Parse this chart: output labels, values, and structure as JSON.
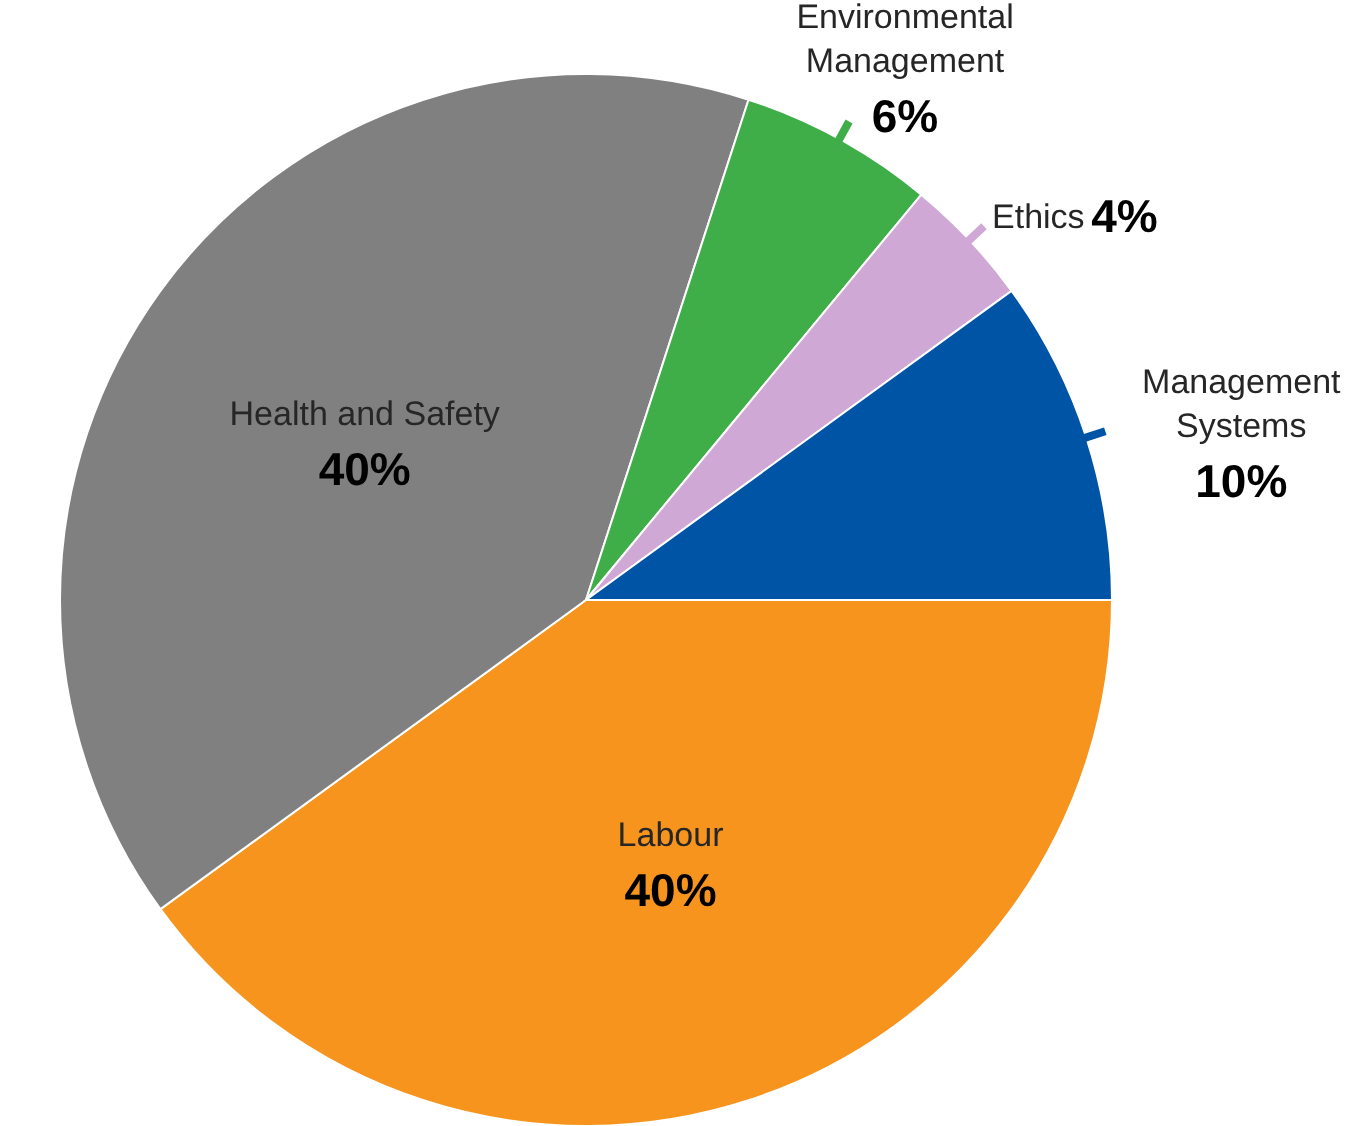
{
  "chart_data": {
    "type": "pie",
    "categories": [
      "Labour",
      "Health and Safety",
      "Environmental Management",
      "Ethics",
      "Management Systems"
    ],
    "values": [
      40,
      40,
      6,
      4,
      10
    ],
    "colors": [
      "#f7941d",
      "#808080",
      "#3fae49",
      "#cfa8d6",
      "#0054a6"
    ],
    "value_labels": [
      "40%",
      "40%",
      "6%",
      "4%",
      "10%"
    ]
  }
}
